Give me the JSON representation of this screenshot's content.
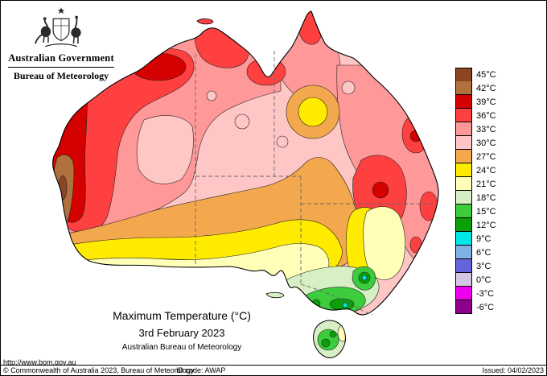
{
  "header": {
    "gov_title": "Australian Government",
    "bureau_title": "Bureau of Meteorology"
  },
  "titles": {
    "main": "Maximum Temperature (°C)",
    "date": "3rd February 2023",
    "org": "Australian Bureau of Meteorology",
    "url": "http://www.bom.gov.au"
  },
  "legend": {
    "entries": [
      {
        "temp": "45",
        "label": "45°C",
        "color": "#8c4525"
      },
      {
        "temp": "42",
        "label": "42°C",
        "color": "#b0713d"
      },
      {
        "temp": "39",
        "label": "39°C",
        "color": "#d50000"
      },
      {
        "temp": "36",
        "label": "36°C",
        "color": "#ff4040"
      },
      {
        "temp": "33",
        "label": "33°C",
        "color": "#ff9898"
      },
      {
        "temp": "30",
        "label": "30°C",
        "color": "#ffc6c6"
      },
      {
        "temp": "27",
        "label": "27°C",
        "color": "#f3a84d"
      },
      {
        "temp": "24",
        "label": "24°C",
        "color": "#ffeb00"
      },
      {
        "temp": "21",
        "label": "21°C",
        "color": "#ffffb8"
      },
      {
        "temp": "18",
        "label": "18°C",
        "color": "#d6efc5"
      },
      {
        "temp": "15",
        "label": "15°C",
        "color": "#3ccc3c"
      },
      {
        "temp": "12",
        "label": "12°C",
        "color": "#0aa00a"
      },
      {
        "temp": "9",
        "label": "9°C",
        "color": "#00e6e6"
      },
      {
        "temp": "6",
        "label": "6°C",
        "color": "#7fb0e6"
      },
      {
        "temp": "3",
        "label": "3°C",
        "color": "#6464dc"
      },
      {
        "temp": "0",
        "label": "0°C",
        "color": "#d4c6e4"
      },
      {
        "temp": "-3",
        "label": "-3°C",
        "color": "#ee00ee"
      },
      {
        "temp": "-6",
        "label": "-6°C",
        "color": "#90008e"
      }
    ]
  },
  "footer": {
    "copyright": "© Commonwealth of Australia 2023, Bureau of Meteorology",
    "id_code": "ID code: AWAP",
    "issued": "Issued: 04/02/2023"
  }
}
